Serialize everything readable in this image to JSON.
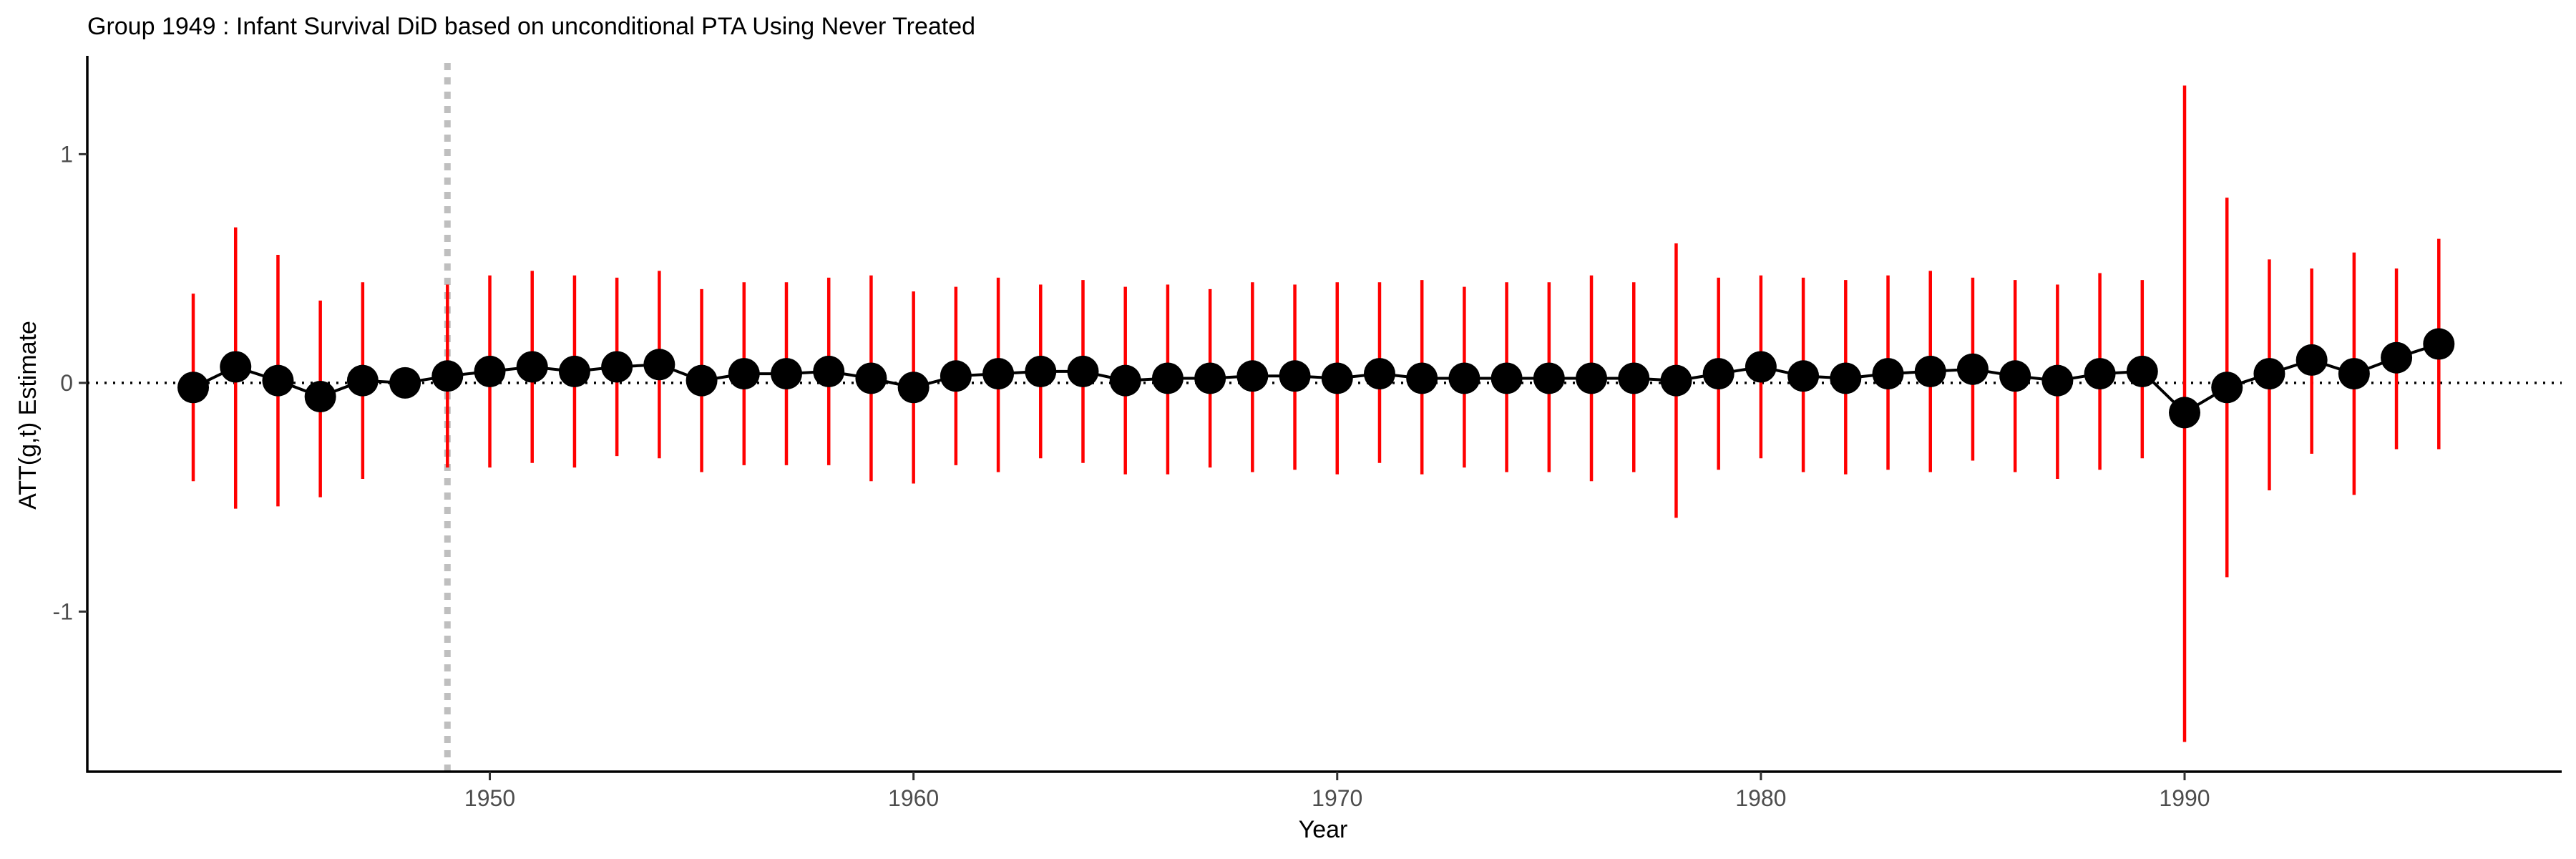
{
  "chart_data": {
    "type": "scatter",
    "title": "Group 1949 : Infant Survival DiD based on unconditional PTA Using Never Treated",
    "xlabel": "Year",
    "ylabel": "ATT(g,t) Estimate",
    "xlim": [
      1940.5,
      1998.9
    ],
    "ylim": [
      -1.7,
      1.43
    ],
    "xticks": [
      1950,
      1960,
      1970,
      1980,
      1990
    ],
    "yticks": [
      -1,
      0,
      1
    ],
    "xtick_labels": [
      "1950",
      "1960",
      "1970",
      "1980",
      "1990"
    ],
    "ytick_labels": [
      "-1",
      "0",
      "1"
    ],
    "treatment_year": 1949,
    "reference_line_y": 0,
    "grid": false,
    "legend": "none",
    "colors": {
      "points": "#000000",
      "line": "#000000",
      "ci_pre": "#ff0000",
      "ci_post": "#ff0000",
      "treatment_line": "#bfbfbf",
      "zero_line": "#000000"
    },
    "series": [
      {
        "x": [
          1943,
          1944,
          1945,
          1946,
          1947,
          1948,
          1949,
          1950,
          1951,
          1952,
          1953,
          1954,
          1955,
          1956,
          1957,
          1958,
          1959,
          1960,
          1961,
          1962,
          1963,
          1964,
          1965,
          1966,
          1967,
          1968,
          1969,
          1970,
          1971,
          1972,
          1973,
          1974,
          1975,
          1976,
          1977,
          1978,
          1979,
          1980,
          1981,
          1982,
          1983,
          1984,
          1985,
          1986,
          1987,
          1988,
          1989,
          1990,
          1991,
          1992,
          1993,
          1994,
          1995,
          1996
        ],
        "y": [
          -0.02,
          0.07,
          0.01,
          -0.06,
          0.01,
          0.0,
          0.03,
          0.05,
          0.07,
          0.05,
          0.07,
          0.08,
          0.01,
          0.04,
          0.04,
          0.05,
          0.02,
          -0.02,
          0.03,
          0.04,
          0.05,
          0.05,
          0.01,
          0.02,
          0.02,
          0.03,
          0.03,
          0.02,
          0.04,
          0.02,
          0.02,
          0.02,
          0.02,
          0.02,
          0.02,
          0.01,
          0.04,
          0.07,
          0.03,
          0.02,
          0.04,
          0.05,
          0.06,
          0.03,
          0.01,
          0.04,
          0.05,
          -0.13,
          -0.02,
          0.04,
          0.1,
          0.04,
          0.11,
          0.17
        ],
        "ci_lower": [
          -0.43,
          -0.55,
          -0.54,
          -0.5,
          -0.42,
          null,
          -0.37,
          -0.37,
          -0.35,
          -0.37,
          -0.32,
          -0.33,
          -0.39,
          -0.36,
          -0.36,
          -0.36,
          -0.43,
          -0.44,
          -0.36,
          -0.39,
          -0.33,
          -0.35,
          -0.4,
          -0.4,
          -0.37,
          -0.39,
          -0.38,
          -0.4,
          -0.35,
          -0.4,
          -0.37,
          -0.39,
          -0.39,
          -0.43,
          -0.39,
          -0.59,
          -0.38,
          -0.33,
          -0.39,
          -0.4,
          -0.38,
          -0.39,
          -0.34,
          -0.39,
          -0.42,
          -0.38,
          -0.33,
          -1.57,
          -0.85,
          -0.47,
          -0.31,
          -0.49,
          -0.29,
          -0.29
        ],
        "ci_upper": [
          0.39,
          0.68,
          0.56,
          0.36,
          0.44,
          null,
          0.43,
          0.47,
          0.49,
          0.47,
          0.46,
          0.49,
          0.41,
          0.44,
          0.44,
          0.46,
          0.47,
          0.4,
          0.42,
          0.46,
          0.43,
          0.45,
          0.42,
          0.43,
          0.41,
          0.44,
          0.43,
          0.44,
          0.44,
          0.45,
          0.42,
          0.44,
          0.44,
          0.47,
          0.44,
          0.61,
          0.46,
          0.47,
          0.46,
          0.45,
          0.47,
          0.49,
          0.46,
          0.45,
          0.43,
          0.48,
          0.45,
          1.3,
          0.81,
          0.54,
          0.5,
          0.57,
          0.5,
          0.63
        ]
      }
    ]
  }
}
